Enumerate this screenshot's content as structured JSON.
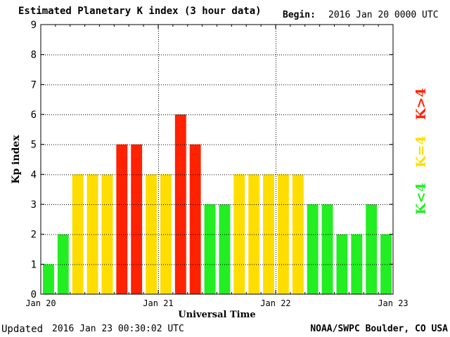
{
  "header": {
    "title": "Estimated Planetary K index (3 hour data)",
    "begin_label": "Begin:",
    "begin_value": "2016 Jan 20 0000 UTC"
  },
  "footer": {
    "updated_label": "Updated",
    "updated_value": "2016 Jan 23 00:30:02 UTC",
    "credit": "NOAA/SWPC Boulder, CO USA"
  },
  "legend": [
    {
      "label": "K<4",
      "color": "#22ee22"
    },
    {
      "label": "K=4",
      "color": "#ffdd00"
    },
    {
      "label": "K>4",
      "color": "#ff2200"
    }
  ],
  "chart_data": {
    "type": "bar",
    "title": "Estimated Planetary K index (3 hour data)",
    "xlabel": "Universal Time",
    "ylabel": "Kp index",
    "ylim": [
      0,
      9
    ],
    "yticks": [
      "0",
      "1",
      "2",
      "3",
      "4",
      "5",
      "6",
      "7",
      "8",
      "9"
    ],
    "xticks": [
      "Jan 20",
      "Jan 21",
      "Jan 22",
      "Jan 23"
    ],
    "grid": true,
    "values": [
      1,
      2,
      4,
      4,
      4,
      5,
      5,
      4,
      4,
      6,
      5,
      3,
      3,
      4,
      4,
      4,
      4,
      4,
      3,
      3,
      2,
      2,
      3,
      2
    ],
    "colors": {
      "low": "#22ee22",
      "mid": "#ffdd00",
      "high": "#ff2200"
    }
  }
}
